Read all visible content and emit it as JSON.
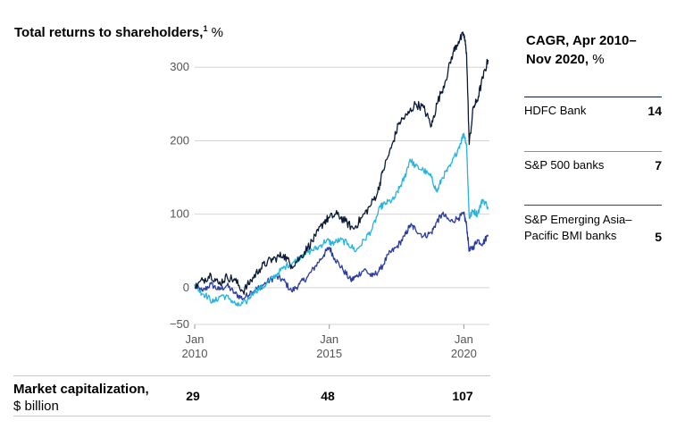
{
  "y_title": {
    "main": "Total returns to shareholders,",
    "footnote": "1",
    "unit": " %"
  },
  "cagr": {
    "title_main": "CAGR, Apr 2010–",
    "title_line2": "Nov 2020,",
    "title_unit": " %",
    "entries": [
      {
        "name": "HDFC Bank",
        "value": "14",
        "color": "#0b1a35"
      },
      {
        "name": "S&P 500 banks",
        "value": "7",
        "color": "#26b4df"
      },
      {
        "name": "S&P Emerging Asia–Pacific BMI banks",
        "value": "5",
        "color": "#2b3c9e"
      }
    ]
  },
  "market_cap": {
    "label_bold": "Market capitalization,",
    "label_unit": "$ billion",
    "values": [
      {
        "year": 2010,
        "value": "29"
      },
      {
        "year": 2015,
        "value": "48"
      },
      {
        "year": 2020,
        "value": "107"
      }
    ]
  },
  "chart_data": {
    "type": "line",
    "xlim": [
      2010.0,
      2020.95
    ],
    "ylim": [
      -50,
      355
    ],
    "y_ticks": [
      {
        "value": 300,
        "label": "300"
      },
      {
        "value": 200,
        "label": "200"
      },
      {
        "value": 100,
        "label": "100"
      },
      {
        "value": 0,
        "label": "0"
      },
      {
        "value": -50,
        "label": "−50"
      }
    ],
    "x_ticks": [
      {
        "value": 2010,
        "label_month": "Jan",
        "label_year": "2010"
      },
      {
        "value": 2015,
        "label_month": "Jan",
        "label_year": "2015"
      },
      {
        "value": 2020,
        "label_month": "Jan",
        "label_year": "2020"
      }
    ],
    "grid": "horizontal",
    "series": [
      {
        "name": "S&P Emerging Asia–Pacific BMI banks",
        "color": "#2b3c9e",
        "points": [
          [
            2010.0,
            2
          ],
          [
            2010.3,
            -5
          ],
          [
            2010.6,
            5
          ],
          [
            2010.9,
            -3
          ],
          [
            2011.2,
            3
          ],
          [
            2011.5,
            -8
          ],
          [
            2011.8,
            -15
          ],
          [
            2012.1,
            -5
          ],
          [
            2012.4,
            0
          ],
          [
            2012.7,
            8
          ],
          [
            2013.0,
            15
          ],
          [
            2013.3,
            10
          ],
          [
            2013.6,
            -5
          ],
          [
            2013.9,
            5
          ],
          [
            2014.2,
            15
          ],
          [
            2014.5,
            30
          ],
          [
            2014.8,
            45
          ],
          [
            2015.0,
            55
          ],
          [
            2015.2,
            40
          ],
          [
            2015.5,
            25
          ],
          [
            2015.8,
            10
          ],
          [
            2016.0,
            15
          ],
          [
            2016.3,
            25
          ],
          [
            2016.6,
            15
          ],
          [
            2016.9,
            25
          ],
          [
            2017.2,
            45
          ],
          [
            2017.5,
            55
          ],
          [
            2017.8,
            70
          ],
          [
            2018.0,
            85
          ],
          [
            2018.2,
            80
          ],
          [
            2018.5,
            70
          ],
          [
            2018.8,
            75
          ],
          [
            2019.0,
            90
          ],
          [
            2019.2,
            100
          ],
          [
            2019.5,
            90
          ],
          [
            2019.8,
            95
          ],
          [
            2020.0,
            100
          ],
          [
            2020.1,
            85
          ],
          [
            2020.2,
            50
          ],
          [
            2020.35,
            55
          ],
          [
            2020.5,
            65
          ],
          [
            2020.7,
            60
          ],
          [
            2020.9,
            72
          ]
        ]
      },
      {
        "name": "S&P 500 banks",
        "color": "#26b4df",
        "points": [
          [
            2010.0,
            5
          ],
          [
            2010.2,
            -5
          ],
          [
            2010.4,
            -10
          ],
          [
            2010.7,
            -20
          ],
          [
            2011.0,
            -10
          ],
          [
            2011.3,
            -15
          ],
          [
            2011.6,
            -25
          ],
          [
            2011.9,
            -20
          ],
          [
            2012.2,
            -5
          ],
          [
            2012.5,
            0
          ],
          [
            2012.8,
            10
          ],
          [
            2013.1,
            20
          ],
          [
            2013.4,
            30
          ],
          [
            2013.7,
            35
          ],
          [
            2014.0,
            45
          ],
          [
            2014.3,
            50
          ],
          [
            2014.6,
            55
          ],
          [
            2014.9,
            65
          ],
          [
            2015.1,
            60
          ],
          [
            2015.4,
            65
          ],
          [
            2015.7,
            60
          ],
          [
            2016.0,
            50
          ],
          [
            2016.3,
            65
          ],
          [
            2016.6,
            80
          ],
          [
            2016.9,
            110
          ],
          [
            2017.1,
            115
          ],
          [
            2017.4,
            120
          ],
          [
            2017.6,
            135
          ],
          [
            2017.8,
            150
          ],
          [
            2018.0,
            175
          ],
          [
            2018.2,
            165
          ],
          [
            2018.5,
            160
          ],
          [
            2018.8,
            150
          ],
          [
            2019.0,
            130
          ],
          [
            2019.2,
            150
          ],
          [
            2019.5,
            165
          ],
          [
            2019.8,
            190
          ],
          [
            2020.0,
            210
          ],
          [
            2020.1,
            195
          ],
          [
            2020.2,
            95
          ],
          [
            2020.35,
            105
          ],
          [
            2020.5,
            100
          ],
          [
            2020.7,
            120
          ],
          [
            2020.9,
            110
          ]
        ]
      },
      {
        "name": "HDFC Bank",
        "color": "#0b1a35",
        "points": [
          [
            2010.0,
            0
          ],
          [
            2010.3,
            10
          ],
          [
            2010.6,
            18
          ],
          [
            2010.9,
            5
          ],
          [
            2011.2,
            15
          ],
          [
            2011.5,
            10
          ],
          [
            2011.8,
            -5
          ],
          [
            2012.1,
            10
          ],
          [
            2012.4,
            25
          ],
          [
            2012.7,
            35
          ],
          [
            2013.0,
            40
          ],
          [
            2013.3,
            45
          ],
          [
            2013.6,
            30
          ],
          [
            2013.9,
            40
          ],
          [
            2014.2,
            55
          ],
          [
            2014.5,
            70
          ],
          [
            2014.8,
            90
          ],
          [
            2015.0,
            95
          ],
          [
            2015.3,
            100
          ],
          [
            2015.6,
            90
          ],
          [
            2015.9,
            80
          ],
          [
            2016.2,
            95
          ],
          [
            2016.5,
            110
          ],
          [
            2016.8,
            130
          ],
          [
            2017.0,
            160
          ],
          [
            2017.3,
            190
          ],
          [
            2017.6,
            225
          ],
          [
            2017.9,
            235
          ],
          [
            2018.2,
            250
          ],
          [
            2018.5,
            245
          ],
          [
            2018.8,
            220
          ],
          [
            2019.0,
            250
          ],
          [
            2019.3,
            280
          ],
          [
            2019.6,
            320
          ],
          [
            2019.8,
            335
          ],
          [
            2020.0,
            345
          ],
          [
            2020.1,
            320
          ],
          [
            2020.2,
            195
          ],
          [
            2020.35,
            245
          ],
          [
            2020.5,
            255
          ],
          [
            2020.7,
            285
          ],
          [
            2020.9,
            310
          ]
        ]
      }
    ]
  }
}
